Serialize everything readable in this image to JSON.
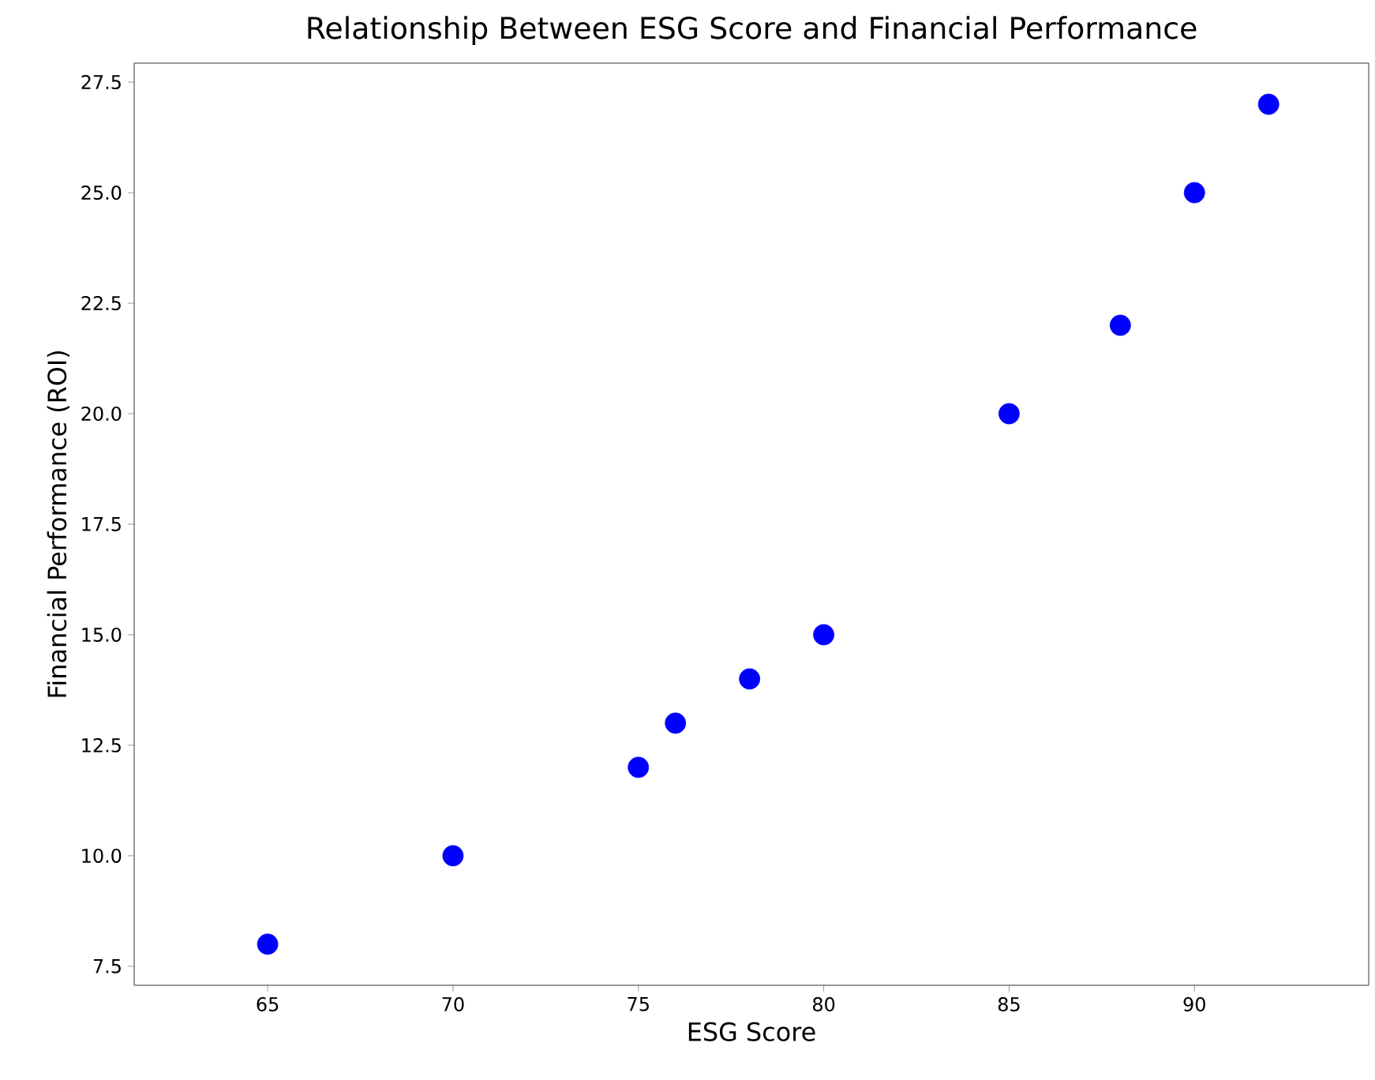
{
  "chart_data": {
    "type": "scatter",
    "title": "Relationship Between ESG Score and Financial Performance",
    "xlabel": "ESG Score",
    "ylabel": "Financial Performance (ROI)",
    "x": [
      65,
      70,
      75,
      76,
      78,
      80,
      85,
      88,
      90,
      92
    ],
    "values": [
      8,
      10,
      12,
      13,
      14,
      15,
      20,
      22,
      25,
      27
    ],
    "color": "#0000ff",
    "marker": "circle",
    "xlim": [
      61.4,
      94.7
    ],
    "xticks": [
      65,
      70,
      75,
      80,
      85,
      90
    ],
    "ylim": [
      7.07,
      27.93
    ],
    "yticks": [
      {
        "value": 7.5,
        "label": "7.5"
      },
      {
        "value": 10,
        "label": "10.0"
      },
      {
        "value": 12.5,
        "label": "12.5"
      },
      {
        "value": 15,
        "label": "15.0"
      },
      {
        "value": 17.5,
        "label": "17.5"
      },
      {
        "value": 20,
        "label": "20.0"
      },
      {
        "value": 22.5,
        "label": "22.5"
      },
      {
        "value": 25,
        "label": "25.0"
      },
      {
        "value": 27.5,
        "label": "27.5"
      }
    ]
  }
}
